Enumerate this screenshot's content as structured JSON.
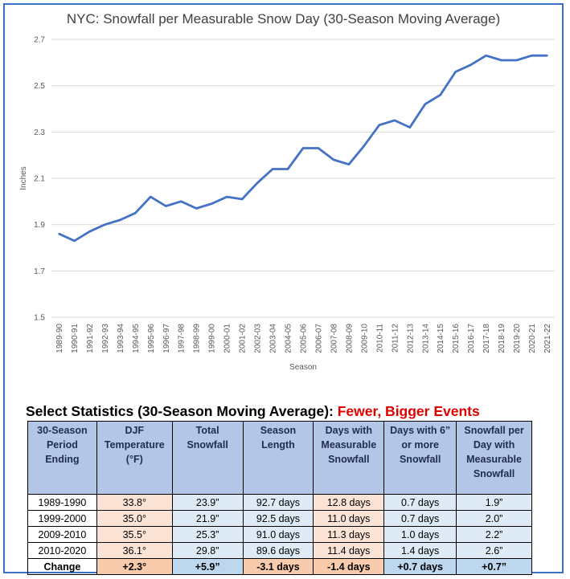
{
  "chart_data": {
    "type": "line",
    "title": "NYC: Snowfall per Measurable Snow Day (30-Season Moving Average)",
    "xlabel": "Season",
    "ylabel": "Inches",
    "ylim": [
      1.5,
      2.7
    ],
    "yticks": [
      "1.5",
      "1.7",
      "1.9",
      "2.1",
      "2.3",
      "2.5",
      "2.7"
    ],
    "grid": true,
    "color": "#4472c4",
    "categories": [
      "1989-90",
      "1990-91",
      "1991-92",
      "1992-93",
      "1993-94",
      "1994-95",
      "1995-96",
      "1996-97",
      "1997-98",
      "1998-99",
      "1999-00",
      "2000-01",
      "2001-02",
      "2002-03",
      "2003-04",
      "2004-05",
      "2005-06",
      "2006-07",
      "2007-08",
      "2008-09",
      "2009-10",
      "2010-11",
      "2011-12",
      "2012-13",
      "2013-14",
      "2014-15",
      "2015-16",
      "2016-17",
      "2017-18",
      "2018-19",
      "2019-20",
      "2020-21",
      "2021-22"
    ],
    "values": [
      1.86,
      1.83,
      1.87,
      1.9,
      1.92,
      1.95,
      2.02,
      1.98,
      2.0,
      1.97,
      1.99,
      2.02,
      2.01,
      2.08,
      2.14,
      2.14,
      2.23,
      2.23,
      2.18,
      2.16,
      2.24,
      2.33,
      2.35,
      2.32,
      2.42,
      2.46,
      2.56,
      2.59,
      2.63,
      2.61,
      2.61,
      2.63,
      2.63
    ]
  },
  "stats": {
    "title_part1": "Select Statistics (30-Season Moving Average): ",
    "title_part2": "Fewer, Bigger Events",
    "headers": [
      "30-Season Period Ending",
      "DJF Temperature (°F)",
      "Total Snowfall",
      "Season Length",
      "Days with Measurable Snowfall",
      "Days with 6” or more Snowfall",
      "Snowfall per Day with Measurable Snowfall"
    ],
    "rows": [
      [
        "1989-1990",
        "33.8°",
        "23.9”",
        "92.7 days",
        "12.8 days",
        "0.7 days",
        "1.9”"
      ],
      [
        "1999-2000",
        "35.0°",
        "21.9”",
        "92.5 days",
        "11.0 days",
        "0.7 days",
        "2.0”"
      ],
      [
        "2009-2010",
        "35.5°",
        "25.3”",
        "91.0 days",
        "11.3 days",
        "1.0 days",
        "2.2”"
      ],
      [
        "2010-2020",
        "36.1°",
        "29.8”",
        "89.6 days",
        "11.4 days",
        "1.4 days",
        "2.6”"
      ]
    ],
    "change": [
      "Change",
      "+2.3°",
      "+5.9”",
      "-3.1 days",
      "-1.4 days",
      "+0.7 days",
      "+0.7”"
    ]
  }
}
